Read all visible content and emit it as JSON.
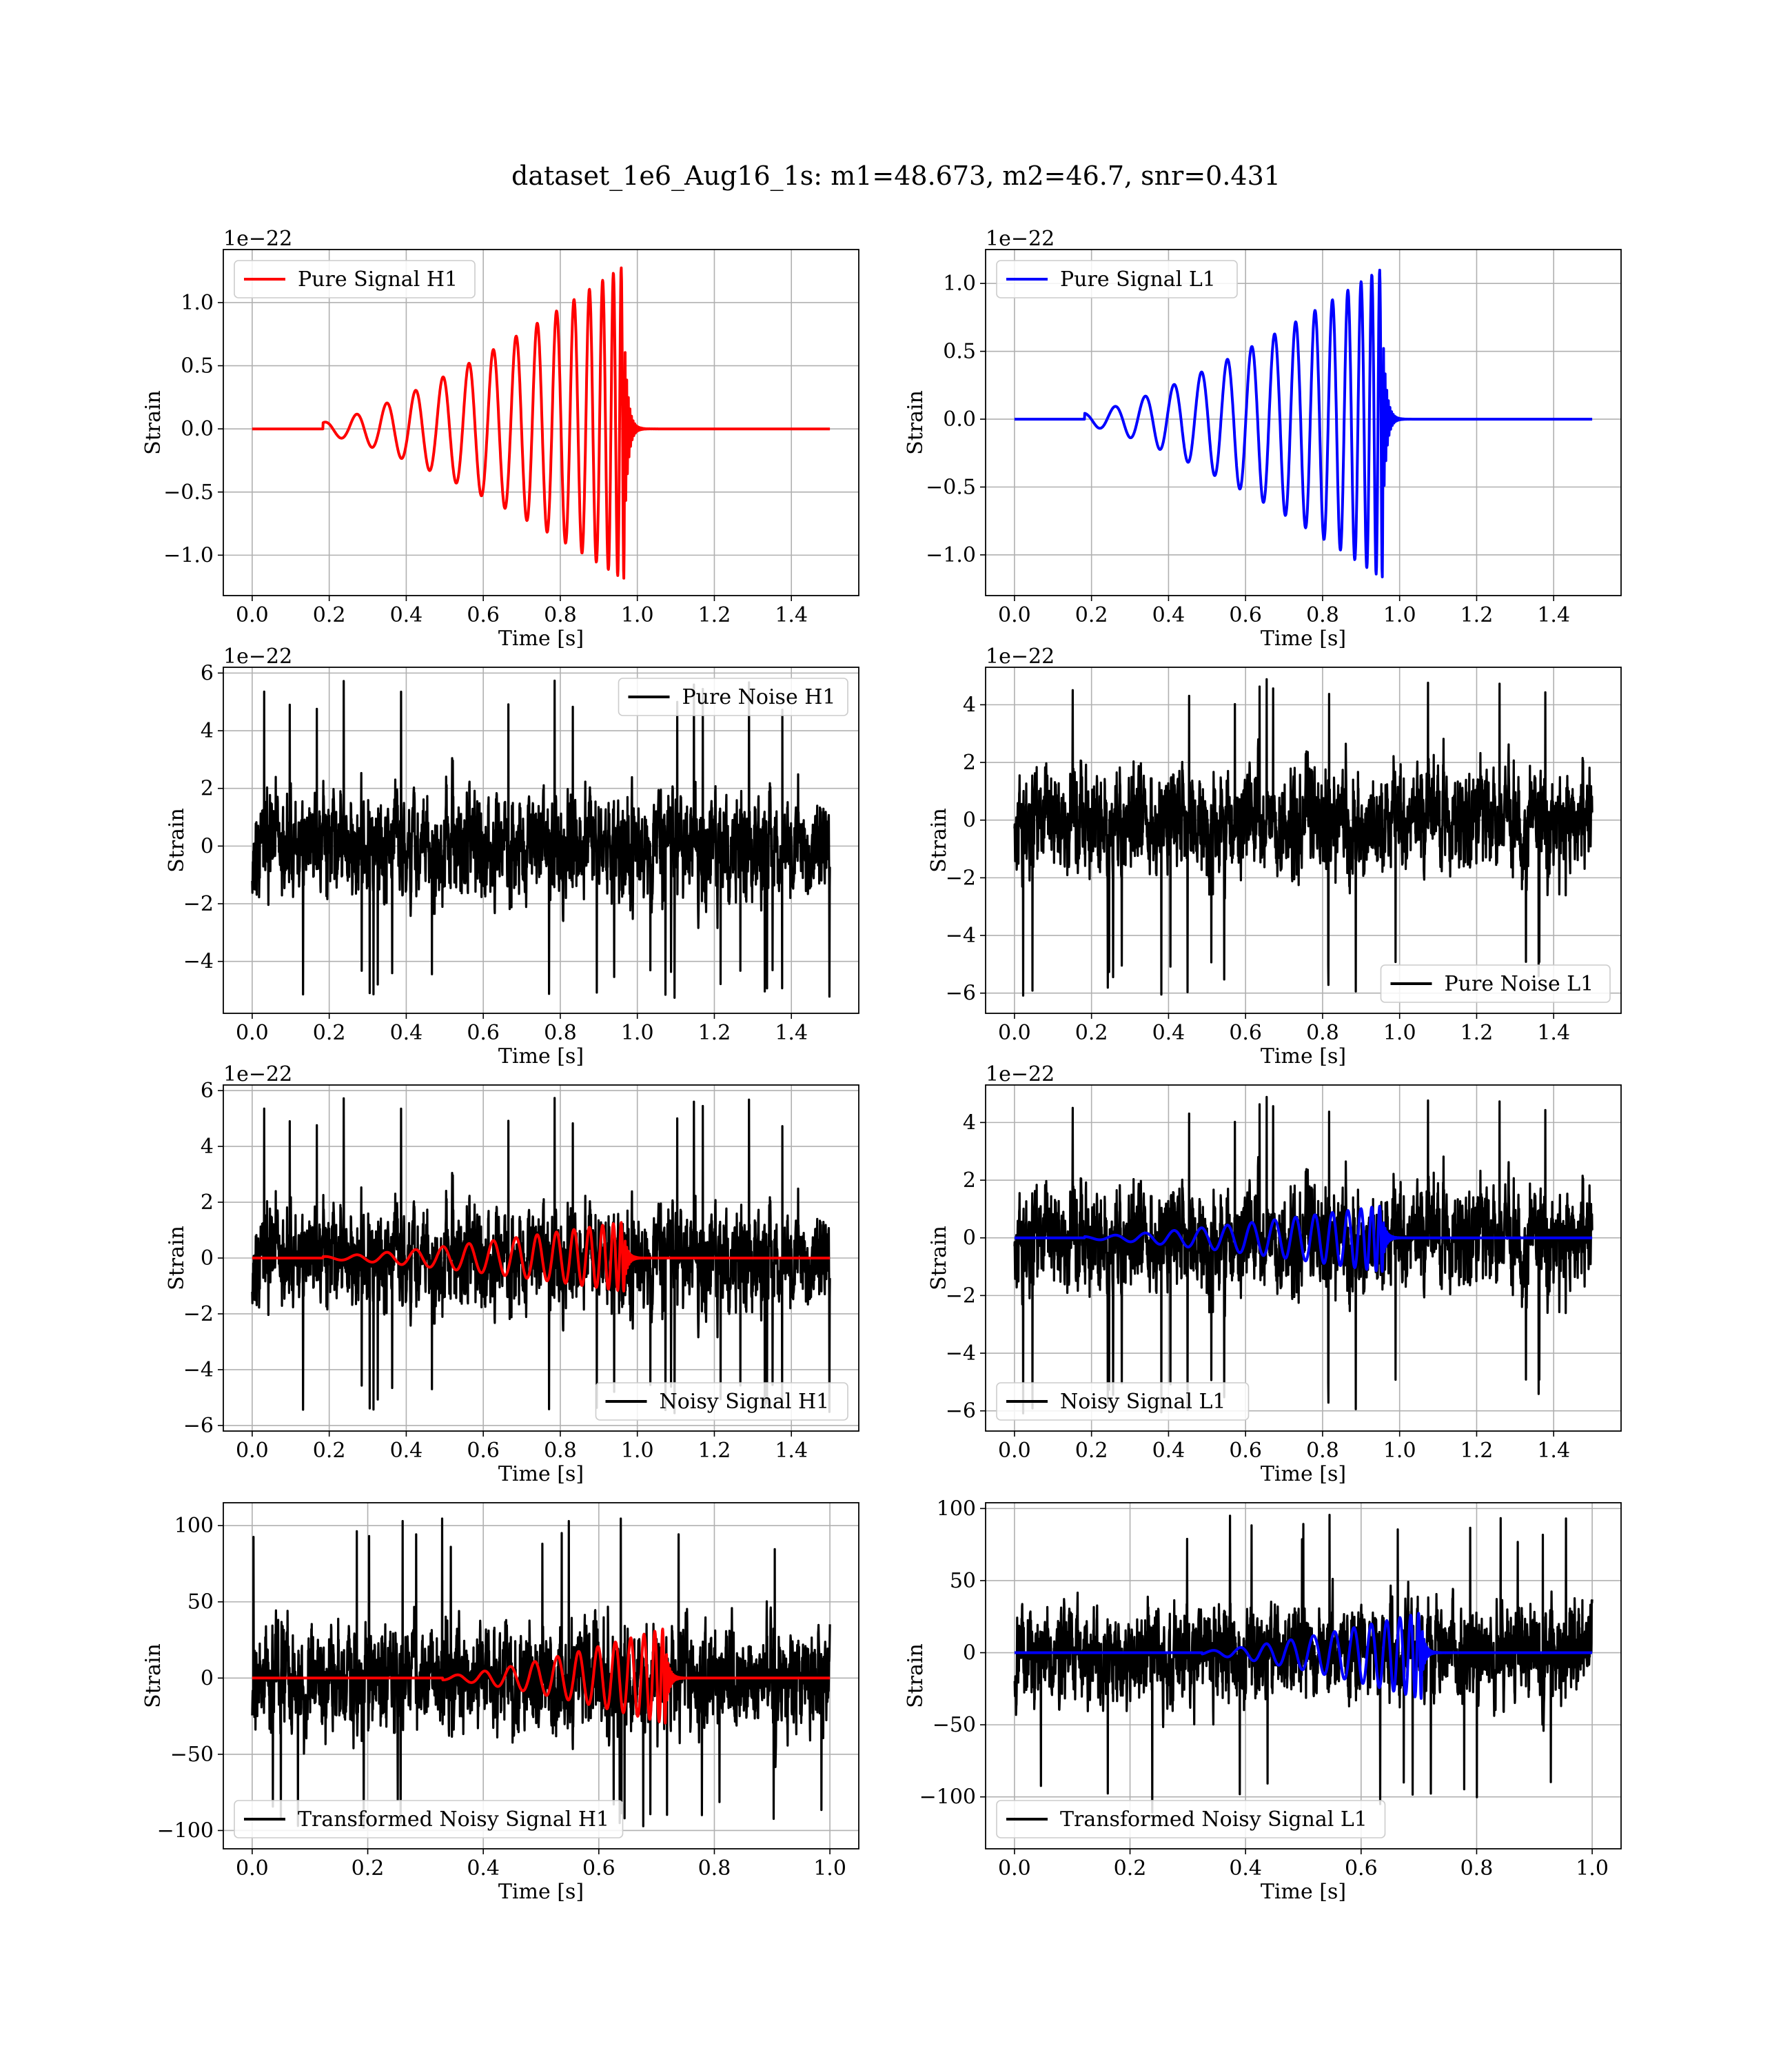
{
  "suptitle": "dataset_1e6_Aug16_1s: m1=48.673, m2=46.7, snr=0.431",
  "chart_data": [
    {
      "type": "line",
      "id": "pure_signal_h1",
      "xlabel": "Time [s]",
      "ylabel": "Strain",
      "offset_text": "1e−22",
      "xlim": [
        -0.075,
        1.575
      ],
      "ylim": [
        -1.32,
        1.42
      ],
      "xticks": [
        0.0,
        0.2,
        0.4,
        0.6,
        0.8,
        1.0,
        1.2,
        1.4
      ],
      "xtick_labels": [
        "0.0",
        "0.2",
        "0.4",
        "0.6",
        "0.8",
        "1.0",
        "1.2",
        "1.4"
      ],
      "yticks": [
        -1.0,
        -0.5,
        0.0,
        0.5,
        1.0
      ],
      "ytick_labels": [
        "−1.0",
        "−0.5",
        "0.0",
        "0.5",
        "1.0"
      ],
      "grid": true,
      "legend_position": "upper left",
      "series": [
        {
          "name": "Pure Signal H1",
          "color": "#ff0000",
          "kind": "chirp",
          "duration": 1.5,
          "merger": 0.968,
          "peak": 1.3,
          "trough": -1.2,
          "noise_amp": 0
        }
      ]
    },
    {
      "type": "line",
      "id": "pure_signal_l1",
      "xlabel": "Time [s]",
      "ylabel": "Strain",
      "offset_text": "1e−22",
      "xlim": [
        -0.075,
        1.575
      ],
      "ylim": [
        -1.3,
        1.25
      ],
      "xticks": [
        0.0,
        0.2,
        0.4,
        0.6,
        0.8,
        1.0,
        1.2,
        1.4
      ],
      "xtick_labels": [
        "0.0",
        "0.2",
        "0.4",
        "0.6",
        "0.8",
        "1.0",
        "1.2",
        "1.4"
      ],
      "yticks": [
        -1.0,
        -0.5,
        0.0,
        0.5,
        1.0
      ],
      "ytick_labels": [
        "−1.0",
        "−0.5",
        "0.0",
        "0.5",
        "1.0"
      ],
      "grid": true,
      "legend_position": "upper left",
      "series": [
        {
          "name": "Pure Signal L1",
          "color": "#0000ff",
          "kind": "chirp",
          "duration": 1.5,
          "merger": 0.958,
          "peak": 1.12,
          "trough": -1.18,
          "noise_amp": 0
        }
      ]
    },
    {
      "type": "line",
      "id": "pure_noise_h1",
      "xlabel": "Time [s]",
      "ylabel": "Strain",
      "offset_text": "1e−22",
      "xlim": [
        -0.075,
        1.575
      ],
      "ylim": [
        -5.8,
        6.2
      ],
      "xticks": [
        0.0,
        0.2,
        0.4,
        0.6,
        0.8,
        1.0,
        1.2,
        1.4
      ],
      "xtick_labels": [
        "0.0",
        "0.2",
        "0.4",
        "0.6",
        "0.8",
        "1.0",
        "1.2",
        "1.4"
      ],
      "yticks": [
        -4,
        -2,
        0,
        2,
        4,
        6
      ],
      "ytick_labels": [
        "−4",
        "−2",
        "0",
        "2",
        "4",
        "6"
      ],
      "grid": true,
      "legend_position": "upper right",
      "series": [
        {
          "name": "Pure Noise H1",
          "color": "#000000",
          "kind": "noise",
          "duration": 1.5,
          "noise_amp": 1.6,
          "noise_min": -5.3,
          "noise_max": 5.8,
          "seed": 11
        }
      ]
    },
    {
      "type": "line",
      "id": "pure_noise_l1",
      "xlabel": "Time [s]",
      "ylabel": "Strain",
      "offset_text": "1e−22",
      "xlim": [
        -0.075,
        1.575
      ],
      "ylim": [
        -6.7,
        5.3
      ],
      "xticks": [
        0.0,
        0.2,
        0.4,
        0.6,
        0.8,
        1.0,
        1.2,
        1.4
      ],
      "xtick_labels": [
        "0.0",
        "0.2",
        "0.4",
        "0.6",
        "0.8",
        "1.0",
        "1.2",
        "1.4"
      ],
      "yticks": [
        -6,
        -4,
        -2,
        0,
        2,
        4
      ],
      "ytick_labels": [
        "−6",
        "−4",
        "−2",
        "0",
        "2",
        "4"
      ],
      "grid": true,
      "legend_position": "lower right",
      "series": [
        {
          "name": "Pure Noise L1",
          "color": "#000000",
          "kind": "noise",
          "duration": 1.5,
          "noise_amp": 1.6,
          "noise_min": -6.1,
          "noise_max": 4.9,
          "seed": 23
        }
      ]
    },
    {
      "type": "line",
      "id": "noisy_signal_h1",
      "xlabel": "Time [s]",
      "ylabel": "Strain",
      "offset_text": "1e−22",
      "xlim": [
        -0.075,
        1.575
      ],
      "ylim": [
        -6.2,
        6.2
      ],
      "xticks": [
        0.0,
        0.2,
        0.4,
        0.6,
        0.8,
        1.0,
        1.2,
        1.4
      ],
      "xtick_labels": [
        "0.0",
        "0.2",
        "0.4",
        "0.6",
        "0.8",
        "1.0",
        "1.2",
        "1.4"
      ],
      "yticks": [
        -6,
        -4,
        -2,
        0,
        2,
        4,
        6
      ],
      "ytick_labels": [
        "−6",
        "−4",
        "−2",
        "0",
        "2",
        "4",
        "6"
      ],
      "grid": true,
      "legend_position": "lower right",
      "series": [
        {
          "name": "Noisy Signal H1",
          "color": "#000000",
          "kind": "noise",
          "duration": 1.5,
          "noise_amp": 1.6,
          "noise_min": -5.6,
          "noise_max": 5.8,
          "seed": 11
        },
        {
          "name": "",
          "color": "#ff0000",
          "kind": "chirp",
          "duration": 1.5,
          "merger": 0.968,
          "peak": 1.3,
          "trough": -1.2,
          "noise_amp": 0
        }
      ]
    },
    {
      "type": "line",
      "id": "noisy_signal_l1",
      "xlabel": "Time [s]",
      "ylabel": "Strain",
      "offset_text": "1e−22",
      "xlim": [
        -0.075,
        1.575
      ],
      "ylim": [
        -6.7,
        5.3
      ],
      "xticks": [
        0.0,
        0.2,
        0.4,
        0.6,
        0.8,
        1.0,
        1.2,
        1.4
      ],
      "xtick_labels": [
        "0.0",
        "0.2",
        "0.4",
        "0.6",
        "0.8",
        "1.0",
        "1.2",
        "1.4"
      ],
      "yticks": [
        -6,
        -4,
        -2,
        0,
        2,
        4
      ],
      "ytick_labels": [
        "−6",
        "−4",
        "−2",
        "0",
        "2",
        "4"
      ],
      "grid": true,
      "legend_position": "lower left",
      "series": [
        {
          "name": "Noisy Signal L1",
          "color": "#000000",
          "kind": "noise",
          "duration": 1.5,
          "noise_amp": 1.6,
          "noise_min": -6.1,
          "noise_max": 4.9,
          "seed": 23
        },
        {
          "name": "",
          "color": "#0000ff",
          "kind": "chirp",
          "duration": 1.5,
          "merger": 0.958,
          "peak": 1.12,
          "trough": -1.18,
          "noise_amp": 0
        }
      ]
    },
    {
      "type": "line",
      "id": "transformed_noisy_signal_h1",
      "xlabel": "Time [s]",
      "ylabel": "Strain",
      "offset_text": "",
      "xlim": [
        -0.05,
        1.05
      ],
      "ylim": [
        -112,
        115
      ],
      "xticks": [
        0.0,
        0.2,
        0.4,
        0.6,
        0.8,
        1.0
      ],
      "xtick_labels": [
        "0.0",
        "0.2",
        "0.4",
        "0.6",
        "0.8",
        "1.0"
      ],
      "yticks": [
        -100,
        -50,
        0,
        50,
        100
      ],
      "ytick_labels": [
        "−100",
        "−50",
        "0",
        "50",
        "100"
      ],
      "grid": true,
      "legend_position": "lower left",
      "series": [
        {
          "name": "Transformed Noisy Signal H1",
          "color": "#000000",
          "kind": "noise",
          "duration": 1.0,
          "noise_amp": 30,
          "noise_min": -100,
          "noise_max": 105,
          "seed": 37
        },
        {
          "name": "",
          "color": "#ff0000",
          "kind": "chirp",
          "duration": 1.0,
          "merger": 0.717,
          "peak": 33,
          "trough": -30,
          "noise_amp": 0
        }
      ]
    },
    {
      "type": "line",
      "id": "transformed_noisy_signal_l1",
      "xlabel": "Time [s]",
      "ylabel": "Strain",
      "offset_text": "",
      "xlim": [
        -0.05,
        1.05
      ],
      "ylim": [
        -136,
        104
      ],
      "xticks": [
        0.0,
        0.2,
        0.4,
        0.6,
        0.8,
        1.0
      ],
      "xtick_labels": [
        "0.0",
        "0.2",
        "0.4",
        "0.6",
        "0.8",
        "1.0"
      ],
      "yticks": [
        -100,
        -50,
        0,
        50,
        100
      ],
      "ytick_labels": [
        "−100",
        "−50",
        "0",
        "50",
        "100"
      ],
      "grid": true,
      "legend_position": "lower left",
      "series": [
        {
          "name": "Transformed Noisy Signal L1",
          "color": "#000000",
          "kind": "noise",
          "duration": 1.0,
          "noise_amp": 30,
          "noise_min": -112,
          "noise_max": 96,
          "seed": 53
        },
        {
          "name": "",
          "color": "#0000ff",
          "kind": "chirp",
          "duration": 1.0,
          "merger": 0.706,
          "peak": 28,
          "trough": -32,
          "noise_amp": 0
        }
      ]
    }
  ]
}
